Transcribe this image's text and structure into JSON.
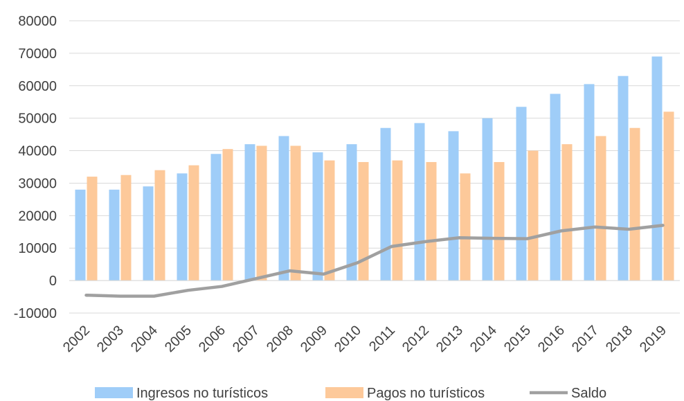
{
  "chart_data": {
    "type": "bar",
    "title": "",
    "xlabel": "",
    "ylabel": "",
    "ylim": [
      -10000,
      80000
    ],
    "y_ticks": [
      -10000,
      0,
      10000,
      20000,
      30000,
      40000,
      50000,
      60000,
      70000,
      80000
    ],
    "grid": true,
    "legend_position": "bottom",
    "categories": [
      "2002",
      "2003",
      "2004",
      "2005",
      "2006",
      "2007",
      "2008",
      "2009",
      "2010",
      "2011",
      "2012",
      "2013",
      "2014",
      "2015",
      "2016",
      "2017",
      "2018",
      "2019"
    ],
    "series": [
      {
        "name": "Ingresos no turísticos",
        "type": "bar",
        "color": "#9fcdf8",
        "values": [
          28000,
          28000,
          29000,
          33000,
          39000,
          42000,
          44500,
          39500,
          42000,
          47000,
          48500,
          46000,
          50000,
          53500,
          57500,
          60500,
          63000,
          69000
        ]
      },
      {
        "name": "Pagos no turísticos",
        "type": "bar",
        "color": "#fdc99a",
        "values": [
          32000,
          32500,
          34000,
          35500,
          40500,
          41500,
          41500,
          37000,
          36500,
          37000,
          36500,
          33000,
          36500,
          40000,
          42000,
          44500,
          47000,
          52000
        ]
      },
      {
        "name": "Saldo",
        "type": "line",
        "color": "#a0a0a0",
        "values": [
          -4500,
          -4800,
          -4800,
          -3000,
          -1800,
          600,
          3000,
          2000,
          5500,
          10500,
          12000,
          13200,
          13000,
          12900,
          15300,
          16500,
          15800,
          17000
        ]
      }
    ]
  }
}
